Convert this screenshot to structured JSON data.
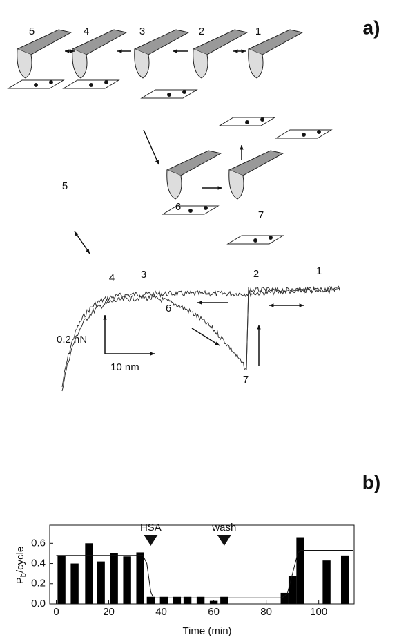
{
  "panel_a": {
    "label": "a)",
    "stages": [
      "5",
      "4",
      "3",
      "2",
      "1",
      "6",
      "7"
    ],
    "curve_labels": [
      "5",
      "4",
      "3",
      "2",
      "1",
      "6",
      "7"
    ],
    "force_scale": "0.2 nN",
    "distance_scale": "10 nm"
  },
  "chart_data": {
    "type": "bar",
    "label": "b)",
    "x_label": "Time (min)",
    "y_label": {
      "main": "P",
      "sub": "b",
      "rest": "/cycle"
    },
    "series": [
      {
        "color": "#000000",
        "x": [
          2,
          7,
          12.5,
          17,
          22,
          27,
          32,
          36,
          41,
          46,
          50,
          55,
          60,
          64,
          87,
          90,
          93,
          103,
          110
        ],
        "values": [
          0.48,
          0.4,
          0.6,
          0.42,
          0.5,
          0.47,
          0.51,
          0.07,
          0.07,
          0.07,
          0.07,
          0.07,
          0.03,
          0.07,
          0.11,
          0.28,
          0.66,
          0.43,
          0.48
        ]
      }
    ],
    "fit": {
      "x": [
        0,
        33,
        34.5,
        36,
        37,
        86,
        88,
        90,
        92,
        93,
        113
      ],
      "values": [
        0.48,
        0.48,
        0.4,
        0.12,
        0.06,
        0.06,
        0.1,
        0.3,
        0.5,
        0.53,
        0.53
      ]
    },
    "annotations": [
      {
        "text": "HSA",
        "x": 36
      },
      {
        "text": "wash",
        "x": 64
      }
    ],
    "xlim": [
      -2.5,
      113.5
    ],
    "ylim": [
      0,
      0.78
    ],
    "xticks": [
      0,
      20,
      40,
      60,
      80,
      100
    ],
    "yticks": [
      {
        "value": 0,
        "label": "0.0"
      },
      0.2,
      0.4,
      0.6
    ]
  }
}
